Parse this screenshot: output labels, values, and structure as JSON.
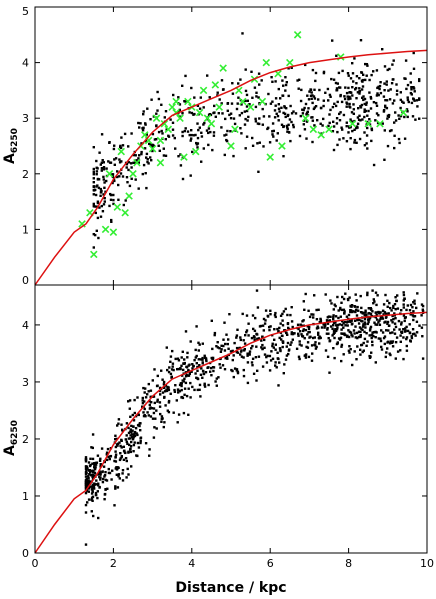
{
  "chart_data": [
    {
      "type": "scatter",
      "panel": "top",
      "xlabel": "",
      "ylabel": {
        "main": "A",
        "sub": "6250"
      },
      "xlim": [
        0,
        10
      ],
      "ylim": [
        0,
        5
      ],
      "xticks": [
        "0",
        "2",
        "4",
        "6",
        "8",
        "10"
      ],
      "yticks": [
        "0",
        "1",
        "2",
        "3",
        "4",
        "5"
      ],
      "grid": false,
      "legend": "none",
      "colors": {
        "points": "#000000",
        "crosses": "#33ee33",
        "curve": "#dd1111"
      },
      "curve": {
        "x": [
          0,
          0.5,
          1.0,
          1.3,
          1.6,
          2.0,
          2.5,
          3.0,
          3.5,
          4.0,
          4.5,
          5.0,
          5.5,
          6.0,
          6.5,
          7.0,
          7.5,
          8.0,
          8.5,
          9.0,
          9.5,
          10.0
        ],
        "y": [
          0,
          0.5,
          0.95,
          1.1,
          1.4,
          1.9,
          2.35,
          2.75,
          3.05,
          3.2,
          3.35,
          3.5,
          3.68,
          3.82,
          3.92,
          4.0,
          4.05,
          4.1,
          4.14,
          4.17,
          4.2,
          4.22
        ]
      },
      "crosses": {
        "x": [
          1.2,
          1.4,
          1.5,
          1.8,
          2.0,
          2.1,
          2.3,
          2.5,
          2.2,
          2.6,
          2.7,
          2.8,
          2.9,
          3.0,
          3.1,
          3.2,
          3.3,
          3.4,
          3.5,
          3.6,
          3.7,
          3.8,
          3.9,
          4.0,
          4.1,
          4.2,
          4.3,
          4.4,
          4.5,
          4.6,
          4.7,
          4.8,
          5.0,
          5.1,
          5.2,
          5.3,
          5.5,
          5.6,
          5.8,
          5.9,
          6.0,
          6.2,
          6.3,
          6.5,
          6.7,
          6.9,
          7.1,
          7.3,
          7.5,
          7.8,
          8.1,
          8.5,
          8.8,
          9.4,
          3.2,
          3.6,
          2.4,
          1.9
        ],
        "y": [
          1.1,
          1.3,
          0.55,
          1.0,
          0.95,
          1.4,
          1.3,
          2.0,
          2.4,
          2.2,
          2.5,
          2.7,
          2.6,
          2.45,
          3.0,
          2.2,
          2.9,
          2.8,
          3.2,
          3.3,
          3.0,
          2.3,
          3.3,
          3.2,
          2.4,
          3.1,
          3.5,
          3.0,
          2.9,
          3.6,
          3.2,
          3.9,
          2.5,
          2.8,
          3.5,
          3.3,
          3.2,
          3.7,
          3.3,
          4.0,
          2.3,
          3.8,
          2.5,
          4.0,
          4.5,
          3.0,
          2.8,
          2.7,
          2.8,
          4.1,
          2.9,
          2.9,
          2.9,
          3.1,
          2.6,
          3.1,
          1.6,
          2.0
        ]
      },
      "points_model": {
        "count": 780,
        "x_range": [
          1.5,
          9.8
        ],
        "median_y": {
          "x": [
            1.5,
            2,
            3,
            4,
            5,
            6,
            7,
            8,
            9,
            10
          ],
          "y": [
            1.6,
            2.1,
            2.6,
            2.95,
            3.05,
            3.15,
            3.2,
            3.25,
            3.3,
            3.35
          ]
        },
        "spread": 0.38
      }
    },
    {
      "type": "scatter",
      "panel": "bottom",
      "xlabel": "Distance / kpc",
      "ylabel": {
        "main": "A",
        "sub": "6250"
      },
      "xlim": [
        0,
        10
      ],
      "ylim": [
        0,
        4.7
      ],
      "xticks": [
        "0",
        "2",
        "4",
        "6",
        "8",
        "10"
      ],
      "yticks": [
        "0",
        "1",
        "2",
        "3",
        "4"
      ],
      "grid": false,
      "legend": "none",
      "colors": {
        "points": "#000000",
        "curve": "#dd1111"
      },
      "curve": {
        "x": [
          0,
          0.5,
          1.0,
          1.3,
          1.6,
          2.0,
          2.5,
          3.0,
          3.5,
          4.0,
          4.5,
          5.0,
          5.5,
          6.0,
          6.5,
          7.0,
          7.5,
          8.0,
          8.5,
          9.0,
          9.5,
          10.0
        ],
        "y": [
          0,
          0.5,
          0.95,
          1.1,
          1.4,
          1.9,
          2.35,
          2.75,
          3.05,
          3.2,
          3.35,
          3.5,
          3.68,
          3.82,
          3.92,
          4.0,
          4.05,
          4.1,
          4.14,
          4.17,
          4.2,
          4.22
        ]
      },
      "points_model": {
        "count": 1250,
        "x_range": [
          1.3,
          9.9
        ],
        "median_y": {
          "x": [
            1.3,
            2,
            2.5,
            3,
            3.5,
            4,
            5,
            6,
            7,
            8,
            9,
            10
          ],
          "y": [
            1.2,
            1.55,
            2.05,
            2.55,
            2.95,
            3.2,
            3.5,
            3.75,
            3.9,
            4.0,
            4.05,
            4.1
          ]
        },
        "spread": 0.28
      }
    }
  ]
}
